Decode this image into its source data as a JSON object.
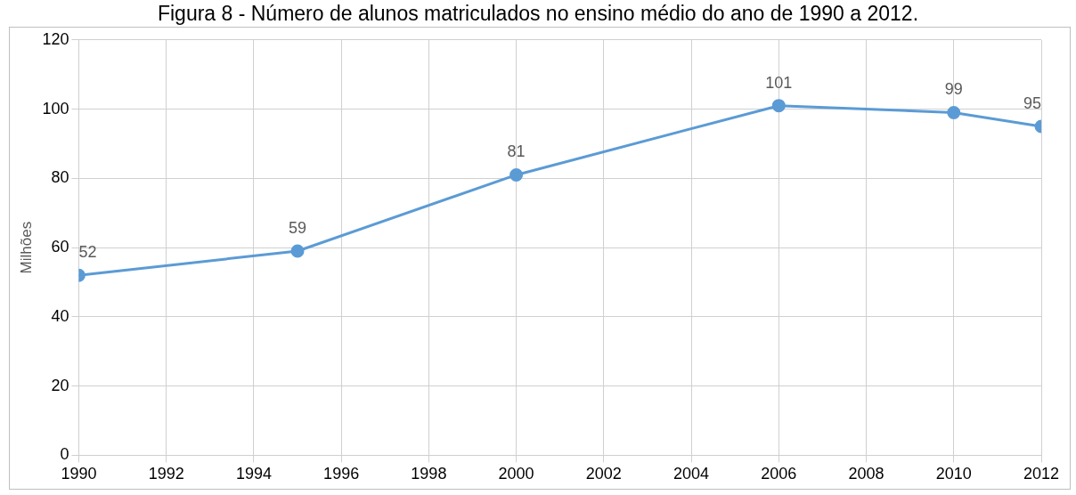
{
  "chart_data": {
    "type": "line",
    "title": "Figura 8 - Número de alunos matriculados no ensino médio do ano de 1990 a 2012.",
    "ylabel": "Milhões",
    "x": [
      1990,
      1995,
      2000,
      2006,
      2010,
      2012
    ],
    "series": [
      {
        "color": "#5b9bd5",
        "values": [
          52,
          59,
          81,
          101,
          99,
          95
        ]
      }
    ],
    "xlim": [
      1990,
      2012
    ],
    "xticks": [
      1990,
      1992,
      1994,
      1996,
      1998,
      2000,
      2002,
      2004,
      2006,
      2008,
      2010,
      2012
    ],
    "ylim": [
      0,
      120
    ],
    "yticks": [
      0,
      20,
      40,
      60,
      80,
      100,
      120
    ],
    "grid": true,
    "marker": "circle",
    "line_style": "solid",
    "data_labels": true
  }
}
